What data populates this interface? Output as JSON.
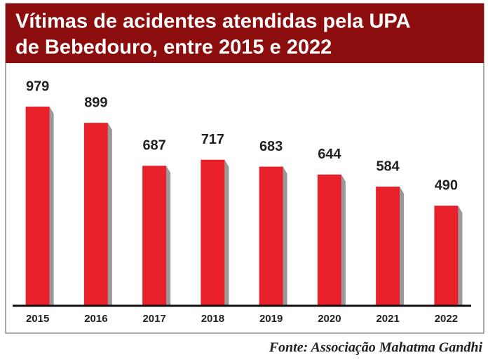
{
  "chart_data": {
    "type": "bar",
    "title_lines": [
      "Vítimas de acidentes atendidas pela UPA",
      "de Bebedouro, entre 2015 e 2022"
    ],
    "categories": [
      "2015",
      "2016",
      "2017",
      "2018",
      "2019",
      "2020",
      "2021",
      "2022"
    ],
    "values": [
      979,
      899,
      687,
      717,
      683,
      644,
      584,
      490
    ],
    "color": "#e8202a",
    "source": "Fonte: Associação Mahatma Gandhi"
  }
}
